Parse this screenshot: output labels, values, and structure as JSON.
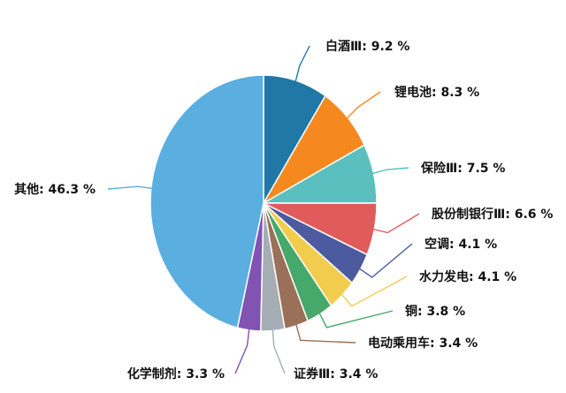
{
  "chart_data": {
    "type": "pie",
    "slices": [
      {
        "name": "白酒Ⅲ",
        "value": 9.2,
        "label": "白酒Ⅲ: 9.2 %",
        "color": "#2177a6"
      },
      {
        "name": "锂电池",
        "value": 8.3,
        "label": "锂电池: 8.3 %",
        "color": "#f5891f"
      },
      {
        "name": "保险Ⅲ",
        "value": 7.5,
        "label": "保险Ⅲ: 7.5 %",
        "color": "#5cbfbf"
      },
      {
        "name": "股份制银行Ⅲ",
        "value": 6.6,
        "label": "股份制银行Ⅲ: 6.6 %",
        "color": "#e15b5b"
      },
      {
        "name": "空调",
        "value": 4.1,
        "label": "空调: 4.1 %",
        "color": "#4c5aa0"
      },
      {
        "name": "水力发电",
        "value": 4.1,
        "label": "水力发电: 4.1 %",
        "color": "#f2cd4d"
      },
      {
        "name": "铜",
        "value": 3.8,
        "label": "铜: 3.8 %",
        "color": "#46a86a"
      },
      {
        "name": "电动乘用车",
        "value": 3.4,
        "label": "电动乘用车: 3.4 %",
        "color": "#9a7058"
      },
      {
        "name": "证券Ⅲ",
        "value": 3.4,
        "label": "证券Ⅲ: 3.4 %",
        "color": "#a5adb5"
      },
      {
        "name": "化学制剂",
        "value": 3.3,
        "label": "化学制剂: 3.3 %",
        "color": "#8153b3"
      },
      {
        "name": "其他",
        "value": 46.3,
        "label": "其他: 46.3 %",
        "color": "#5aaee0"
      }
    ],
    "start_angle": "12 o'clock",
    "direction": "clockwise",
    "legend": "none"
  }
}
